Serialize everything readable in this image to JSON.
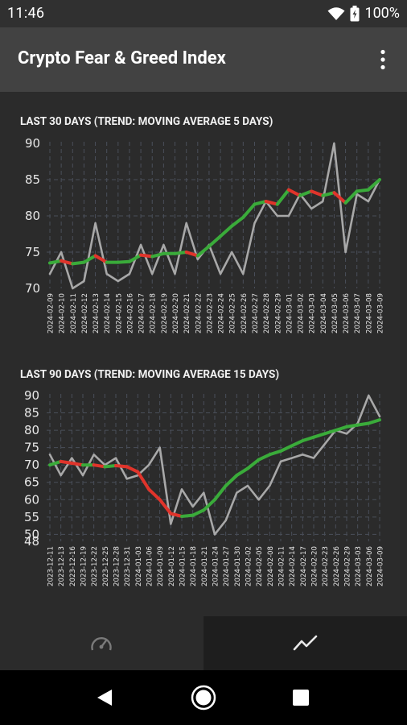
{
  "status": {
    "time": "11:46",
    "battery": "100%"
  },
  "app": {
    "title": "Crypto Fear & Greed Index",
    "menu_icon": "more-vert-icon"
  },
  "chart_data": [
    {
      "type": "line",
      "title": "LAST 30 DAYS (TREND: MOVING AVERAGE 5 DAYS)",
      "ylim": [
        70,
        90
      ],
      "yticks": [
        70,
        75,
        80,
        85,
        90
      ],
      "grid": true,
      "x": [
        "2024-02-09",
        "2024-02-10",
        "2024-02-11",
        "2024-02-12",
        "2024-02-13",
        "2024-02-14",
        "2024-02-15",
        "2024-02-16",
        "2024-02-17",
        "2024-02-18",
        "2024-02-19",
        "2024-02-20",
        "2024-02-21",
        "2024-02-22",
        "2024-02-23",
        "2024-02-24",
        "2024-02-25",
        "2024-02-26",
        "2024-02-27",
        "2024-02-28",
        "2024-02-29",
        "2024-03-01",
        "2024-03-02",
        "2024-03-03",
        "2024-03-04",
        "2024-03-05",
        "2024-03-06",
        "2024-03-07",
        "2024-03-08",
        "2024-03-09"
      ],
      "series": [
        {
          "color": "#a8a8a8",
          "values": [
            72,
            75,
            70,
            71,
            79,
            72,
            71,
            72,
            76,
            72,
            76,
            72,
            79,
            74,
            76,
            72,
            75,
            72,
            79,
            82,
            80,
            80,
            83,
            81,
            82,
            90,
            75,
            83,
            82,
            85
          ]
        },
        {
          "up_color": "#3aab3a",
          "down_color": "#e0342b",
          "values": [
            73.5,
            73.8,
            73.4,
            73.6,
            74.5,
            73.6,
            73.6,
            73.7,
            74.6,
            74.4,
            74.8,
            74.8,
            75,
            74.5,
            75.8,
            77.2,
            78.6,
            79.8,
            81.6,
            82,
            81.6,
            83.6,
            82.8,
            83.4,
            82.8,
            83.2,
            81.8,
            83.4,
            83.6,
            85
          ]
        }
      ]
    },
    {
      "type": "line",
      "title": "LAST 90 DAYS (TREND: MOVING AVERAGE 15 DAYS)",
      "ylim": [
        48,
        90
      ],
      "yticks": [
        48,
        50,
        55,
        60,
        65,
        70,
        75,
        80,
        85,
        90
      ],
      "grid": true,
      "x": [
        "2023-12-11",
        "2023-12-13",
        "2023-12-16",
        "2023-12-19",
        "2023-12-22",
        "2023-12-25",
        "2023-12-28",
        "2023-12-31",
        "2024-01-03",
        "2024-01-06",
        "2024-01-09",
        "2024-01-12",
        "2024-01-15",
        "2024-01-18",
        "2024-01-21",
        "2024-01-24",
        "2024-01-27",
        "2024-01-30",
        "2024-02-02",
        "2024-02-05",
        "2024-02-08",
        "2024-02-11",
        "2024-02-14",
        "2024-02-17",
        "2024-02-20",
        "2024-02-23",
        "2024-02-26",
        "2024-02-29",
        "2024-03-03",
        "2024-03-06",
        "2024-03-09"
      ],
      "series": [
        {
          "color": "#a8a8a8",
          "values": [
            73,
            67,
            72,
            67,
            73,
            70,
            72,
            66,
            67,
            70,
            75,
            53,
            63,
            58,
            62,
            50,
            54,
            62,
            64,
            60,
            64,
            71,
            72,
            73,
            72,
            76,
            80,
            79,
            82,
            90,
            84
          ]
        },
        {
          "up_color": "#3aab3a",
          "down_color": "#e0342b",
          "values": [
            70,
            71,
            70.5,
            70,
            70,
            69.5,
            69.8,
            69.5,
            68,
            63,
            60,
            56,
            55.2,
            55.5,
            57,
            60,
            64,
            67,
            69,
            71.5,
            73,
            74,
            75.5,
            77,
            78,
            79,
            80,
            81,
            81.5,
            82,
            83
          ]
        }
      ]
    }
  ],
  "nav": {
    "tabs": [
      {
        "label": "index",
        "icon": "speedometer-icon",
        "active": false
      },
      {
        "label": "history",
        "icon": "trending-chart-icon",
        "active": true
      }
    ]
  },
  "system_nav": {
    "back_icon": "back-triangle-icon",
    "home_icon": "home-circle-icon",
    "recents_icon": "recents-square-icon"
  }
}
